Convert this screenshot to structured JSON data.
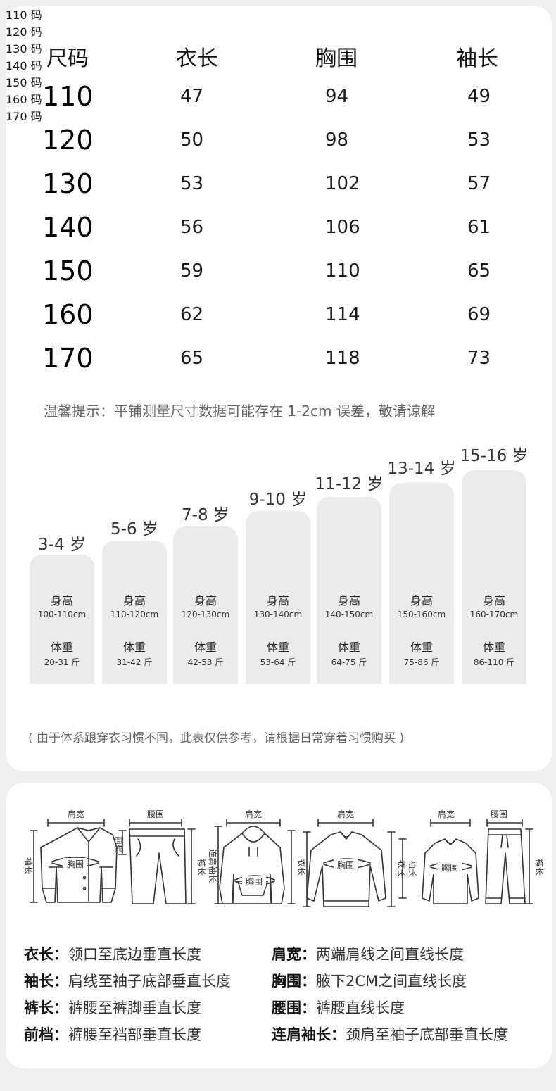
{
  "table": {
    "headers": [
      "尺码",
      "衣长",
      "胸围",
      "袖长"
    ],
    "rows": [
      {
        "size": "110",
        "length": "47",
        "chest": "94",
        "sleeve": "49"
      },
      {
        "size": "120",
        "length": "50",
        "chest": "98",
        "sleeve": "53"
      },
      {
        "size": "130",
        "length": "53",
        "chest": "102",
        "sleeve": "57"
      },
      {
        "size": "140",
        "length": "56",
        "chest": "106",
        "sleeve": "61"
      },
      {
        "size": "150",
        "length": "59",
        "chest": "110",
        "sleeve": "65"
      },
      {
        "size": "160",
        "length": "62",
        "chest": "114",
        "sleeve": "69"
      },
      {
        "size": "170",
        "length": "65",
        "chest": "118",
        "sleeve": "73"
      }
    ],
    "tip": "温馨提示：平铺测量尺寸数据可能存在 1-2cm 误差，敬请谅解"
  },
  "guide": {
    "height_label": "身高",
    "weight_label": "体重",
    "items": [
      {
        "age": "3-4 岁",
        "height": "100-110cm",
        "weight": "20-31 斤",
        "code": "110 码"
      },
      {
        "age": "5-6 岁",
        "height": "110-120cm",
        "weight": "31-42 斤",
        "code": "120 码"
      },
      {
        "age": "7-8 岁",
        "height": "120-130cm",
        "weight": "42-53 斤",
        "code": "130 码"
      },
      {
        "age": "9-10 岁",
        "height": "130-140cm",
        "weight": "53-64 斤",
        "code": "140 码"
      },
      {
        "age": "11-12 岁",
        "height": "140-150cm",
        "weight": "64-75 斤",
        "code": "150 码"
      },
      {
        "age": "13-14 岁",
        "height": "150-160cm",
        "weight": "75-86 斤",
        "code": "160 码"
      },
      {
        "age": "15-16 岁",
        "height": "160-170cm",
        "weight": "86-110 斤",
        "code": "170 码"
      }
    ],
    "note": "( 由于体系跟穿衣习惯不同，此表仅供参考，请根据日常穿着习惯购买 )"
  },
  "illustrations": {
    "shoulder": "肩宽",
    "waist": "腰围",
    "chest": "胸围",
    "sleeve": "袖长",
    "front_rise": "前档",
    "pants_length": "裤长",
    "length": "衣长",
    "raglan_sleeve": "连肩袖长"
  },
  "definitions": [
    {
      "term": "衣长",
      "desc": "领口至底边垂直长度"
    },
    {
      "term": "肩宽",
      "desc": "两端肩线之间直线长度"
    },
    {
      "term": "袖长",
      "desc": "肩线至袖子底部垂直长度"
    },
    {
      "term": "胸围",
      "desc": "腋下2CM之间直线长度"
    },
    {
      "term": "裤长",
      "desc": "裤腰至裤脚垂直长度"
    },
    {
      "term": "腰围",
      "desc": "裤腰直线长度"
    },
    {
      "term": "前档",
      "desc": "裤腰至裆部垂直长度"
    },
    {
      "term": "连肩袖长",
      "desc": "颈肩至袖子底部垂直长度"
    }
  ]
}
